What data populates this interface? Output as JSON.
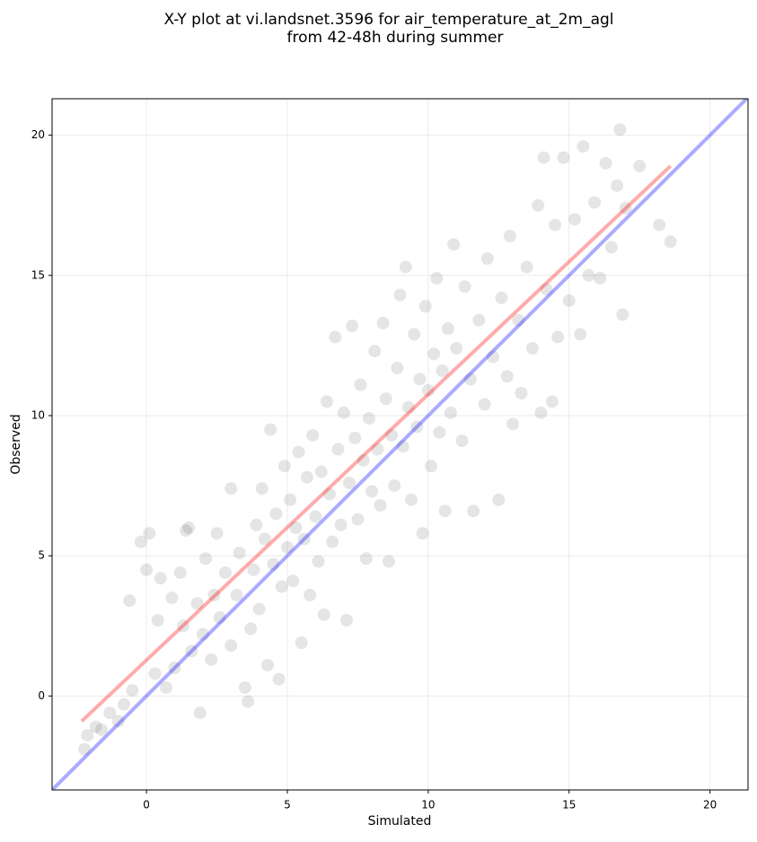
{
  "chart_data": {
    "type": "scatter",
    "title": [
      "X-Y plot at vi.landsnet.3596 for air_temperature_at_2m_agl",
      "from 42-48h during summer"
    ],
    "xlabel": "Simulated",
    "ylabel": "Observed",
    "xlim": [
      -3.35,
      21.35
    ],
    "ylim": [
      -3.35,
      21.3
    ],
    "xticks": [
      0,
      5,
      10,
      15,
      20
    ],
    "yticks": [
      0,
      5,
      10,
      15,
      20
    ],
    "grid": true,
    "color": "#000000",
    "x": [
      -2.2,
      -2.1,
      -1.8,
      -1.6,
      -1.3,
      -1,
      -0.8,
      -0.5,
      -0.6,
      -0.2,
      0,
      0.1,
      0.3,
      0.4,
      0.5,
      0.7,
      0.9,
      1,
      1.2,
      1.3,
      1.4,
      1.5,
      1.6,
      1.8,
      1.9,
      2,
      2.1,
      2.3,
      2.4,
      2.5,
      2.6,
      2.8,
      3,
      3,
      3.2,
      3.3,
      3.5,
      3.6,
      3.7,
      3.8,
      3.9,
      4,
      4.1,
      4.2,
      4.3,
      4.4,
      4.5,
      4.6,
      4.7,
      4.8,
      4.9,
      5,
      5.1,
      5.2,
      5.3,
      5.4,
      5.5,
      5.6,
      5.7,
      5.8,
      5.9,
      6,
      6.1,
      6.2,
      6.3,
      6.4,
      6.5,
      6.6,
      6.7,
      6.8,
      6.9,
      7,
      7.1,
      7.2,
      7.3,
      7.4,
      7.5,
      7.6,
      7.7,
      7.8,
      7.9,
      8,
      8.1,
      8.2,
      8.3,
      8.4,
      8.5,
      8.6,
      8.7,
      8.8,
      8.9,
      9,
      9.1,
      9.2,
      9.3,
      9.4,
      9.5,
      9.6,
      9.7,
      9.8,
      9.9,
      10,
      10.1,
      10.2,
      10.3,
      10.4,
      10.5,
      10.6,
      10.7,
      10.8,
      10.9,
      11,
      11.2,
      11.3,
      11.5,
      11.6,
      11.8,
      12,
      12.1,
      12.3,
      12.5,
      12.6,
      12.8,
      12.9,
      13,
      13.2,
      13.3,
      13.5,
      13.7,
      13.9,
      14,
      14.1,
      14.2,
      14.4,
      14.5,
      14.6,
      14.8,
      15,
      15.2,
      15.4,
      15.5,
      15.7,
      15.9,
      16.1,
      16.3,
      16.5,
      16.7,
      16.8,
      16.9,
      17,
      17.5,
      18.2,
      18.6
    ],
    "values": [
      -1.9,
      -1.4,
      -1.1,
      -1.2,
      -0.6,
      -0.9,
      -0.3,
      0.2,
      3.4,
      5.5,
      4.5,
      5.8,
      0.8,
      2.7,
      4.2,
      0.3,
      3.5,
      1,
      4.4,
      2.5,
      5.9,
      6,
      1.6,
      3.3,
      -0.6,
      2.2,
      4.9,
      1.3,
      3.6,
      5.8,
      2.8,
      4.4,
      7.4,
      1.8,
      3.6,
      5.1,
      0.3,
      -0.2,
      2.4,
      4.5,
      6.1,
      3.1,
      7.4,
      5.6,
      1.1,
      9.5,
      4.7,
      6.5,
      0.6,
      3.9,
      8.2,
      5.3,
      7,
      4.1,
      6,
      8.7,
      1.9,
      5.6,
      7.8,
      3.6,
      9.3,
      6.4,
      4.8,
      8,
      2.9,
      10.5,
      7.2,
      5.5,
      12.8,
      8.8,
      6.1,
      10.1,
      2.7,
      7.6,
      13.2,
      9.2,
      6.3,
      11.1,
      8.4,
      4.9,
      9.9,
      7.3,
      12.3,
      8.8,
      6.8,
      13.3,
      10.6,
      4.8,
      9.3,
      7.5,
      11.7,
      14.3,
      8.9,
      15.3,
      10.3,
      7,
      12.9,
      9.6,
      11.3,
      5.8,
      13.9,
      10.9,
      8.2,
      12.2,
      14.9,
      9.4,
      11.6,
      6.6,
      13.1,
      10.1,
      16.1,
      12.4,
      9.1,
      14.6,
      11.3,
      6.6,
      13.4,
      10.4,
      15.6,
      12.1,
      7,
      14.2,
      11.4,
      16.4,
      9.7,
      13.4,
      10.8,
      15.3,
      12.4,
      17.5,
      10.1,
      19.2,
      14.5,
      10.5,
      16.8,
      12.8,
      19.2,
      14.1,
      17,
      12.9,
      19.6,
      15,
      17.6,
      14.9,
      19,
      16,
      18.2,
      20.2,
      13.6,
      17.4,
      18.9,
      16.8,
      16.2
    ],
    "lines": [
      {
        "color": "#0000ff",
        "x": [
          -3.35,
          21.35
        ],
        "values": [
          -3.35,
          21.35
        ]
      },
      {
        "color": "#ff0000",
        "x": [
          -2.3,
          18.6
        ],
        "values": [
          -0.9,
          18.9
        ]
      }
    ]
  }
}
